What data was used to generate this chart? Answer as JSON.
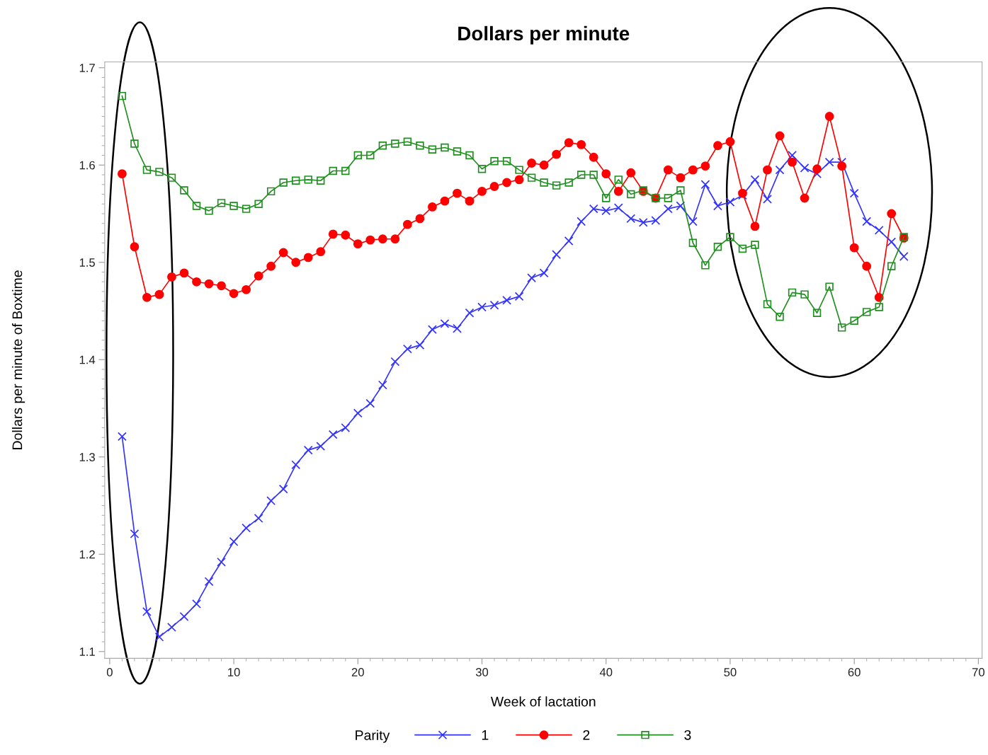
{
  "chart_data": {
    "type": "line",
    "title": "Dollars per minute",
    "xlabel": "Week of lactation",
    "ylabel": "Dollars per minute of Boxtime",
    "legend_title": "Parity",
    "legend": "bottom",
    "grid": false,
    "line_style": "solid",
    "xlim": [
      -0.4,
      70.3
    ],
    "xticks": [
      0,
      10,
      20,
      30,
      40,
      50,
      60,
      70
    ],
    "ylim": [
      1.093,
      1.706
    ],
    "yticks": [
      1.1,
      1.2,
      1.3,
      1.4,
      1.5,
      1.6,
      1.7
    ],
    "x": [
      1,
      2,
      3,
      4,
      5,
      6,
      7,
      8,
      9,
      10,
      11,
      12,
      13,
      14,
      15,
      16,
      17,
      18,
      19,
      20,
      21,
      22,
      23,
      24,
      25,
      26,
      27,
      28,
      29,
      30,
      31,
      32,
      33,
      34,
      35,
      36,
      37,
      38,
      39,
      40,
      41,
      42,
      43,
      44,
      45,
      46,
      47,
      48,
      49,
      50,
      51,
      52,
      53,
      54,
      55,
      56,
      57,
      58,
      59,
      60,
      61,
      62,
      63,
      64
    ],
    "series": [
      {
        "name": "1",
        "color": "#3333ff",
        "marker": "cross",
        "values": [
          1.321,
          1.221,
          1.141,
          1.115,
          1.125,
          1.136,
          1.149,
          1.172,
          1.192,
          1.213,
          1.227,
          1.237,
          1.255,
          1.267,
          1.292,
          1.307,
          1.311,
          1.323,
          1.33,
          1.345,
          1.355,
          1.374,
          1.398,
          1.411,
          1.415,
          1.431,
          1.437,
          1.432,
          1.448,
          1.454,
          1.456,
          1.461,
          1.465,
          1.484,
          1.489,
          1.508,
          1.522,
          1.542,
          1.555,
          1.553,
          1.556,
          1.545,
          1.541,
          1.543,
          1.555,
          1.558,
          1.542,
          1.58,
          1.558,
          1.562,
          1.569,
          1.585,
          1.565,
          1.595,
          1.61,
          1.597,
          1.591,
          1.603,
          1.603,
          1.571,
          1.542,
          1.533,
          1.521,
          1.506
        ]
      },
      {
        "name": "2",
        "color": "#ff0000",
        "marker": "circle",
        "values": [
          1.591,
          1.516,
          1.464,
          1.467,
          1.485,
          1.489,
          1.48,
          1.478,
          1.476,
          1.468,
          1.472,
          1.486,
          1.496,
          1.51,
          1.5,
          1.505,
          1.511,
          1.529,
          1.528,
          1.519,
          1.523,
          1.524,
          1.524,
          1.539,
          1.545,
          1.557,
          1.563,
          1.571,
          1.563,
          1.573,
          1.578,
          1.582,
          1.585,
          1.602,
          1.6,
          1.611,
          1.623,
          1.621,
          1.608,
          1.591,
          1.573,
          1.592,
          1.573,
          1.566,
          1.595,
          1.587,
          1.595,
          1.599,
          1.62,
          1.624,
          1.571,
          1.537,
          1.595,
          1.63,
          1.603,
          1.566,
          1.596,
          1.65,
          1.599,
          1.515,
          1.496,
          1.464,
          1.55,
          1.525
        ]
      },
      {
        "name": "3",
        "color": "#1f8f1f",
        "marker": "square",
        "values": [
          1.671,
          1.622,
          1.595,
          1.593,
          1.587,
          1.574,
          1.558,
          1.553,
          1.561,
          1.558,
          1.555,
          1.56,
          1.573,
          1.582,
          1.584,
          1.585,
          1.584,
          1.594,
          1.594,
          1.61,
          1.61,
          1.62,
          1.622,
          1.624,
          1.62,
          1.616,
          1.618,
          1.614,
          1.61,
          1.596,
          1.604,
          1.604,
          1.595,
          1.587,
          1.582,
          1.579,
          1.582,
          1.59,
          1.59,
          1.566,
          1.585,
          1.57,
          1.574,
          1.566,
          1.566,
          1.574,
          1.52,
          1.497,
          1.516,
          1.526,
          1.514,
          1.518,
          1.457,
          1.444,
          1.469,
          1.467,
          1.448,
          1.475,
          1.433,
          1.44,
          1.449,
          1.454,
          1.496,
          1.526
        ]
      }
    ]
  }
}
